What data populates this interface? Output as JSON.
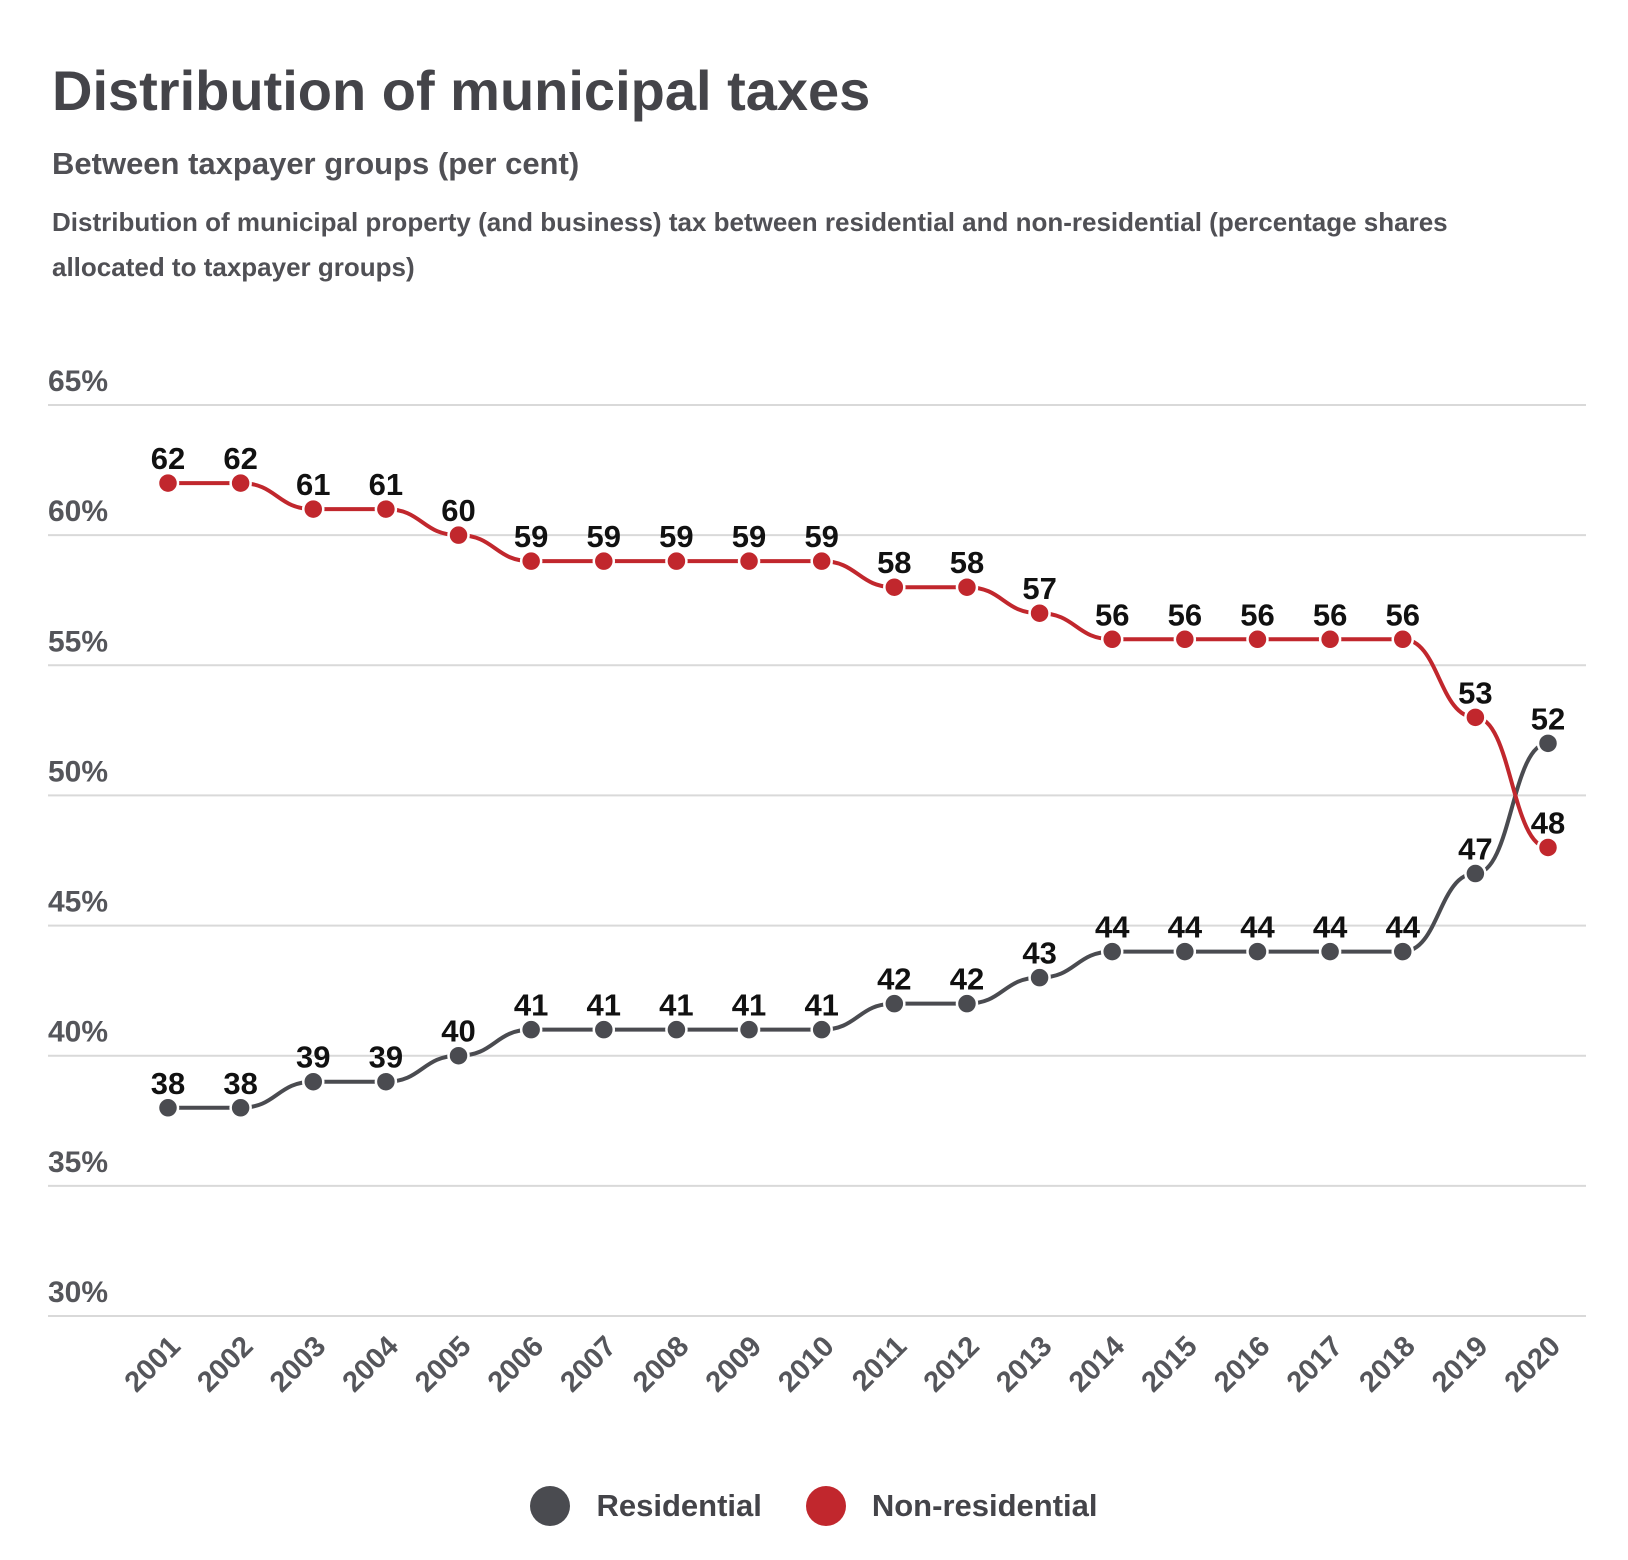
{
  "chart_data": {
    "type": "line",
    "title": "Distribution of municipal taxes",
    "subtitle": "Between taxpayer groups (per cent)",
    "description": "Distribution of municipal property (and business) tax between residential and non-residential (percentage shares allocated to taxpayer groups)",
    "x": [
      "2001",
      "2002",
      "2003",
      "2004",
      "2005",
      "2006",
      "2007",
      "2008",
      "2009",
      "2010",
      "2011",
      "2012",
      "2013",
      "2014",
      "2015",
      "2016",
      "2017",
      "2018",
      "2019",
      "2020"
    ],
    "y_ticks": [
      "30%",
      "35%",
      "40%",
      "45%",
      "50%",
      "55%",
      "60%",
      "65%"
    ],
    "ylim": [
      30,
      65
    ],
    "grid": true,
    "legend_position": "bottom",
    "series": [
      {
        "name": "Residential",
        "color": "#4a4b50",
        "values": [
          38,
          38,
          39,
          39,
          40,
          41,
          41,
          41,
          41,
          41,
          42,
          42,
          43,
          44,
          44,
          44,
          44,
          44,
          47,
          52
        ]
      },
      {
        "name": "Non-residential",
        "color": "#c1272d",
        "values": [
          62,
          62,
          61,
          61,
          60,
          59,
          59,
          59,
          59,
          59,
          58,
          58,
          57,
          56,
          56,
          56,
          56,
          56,
          53,
          48
        ]
      }
    ]
  }
}
